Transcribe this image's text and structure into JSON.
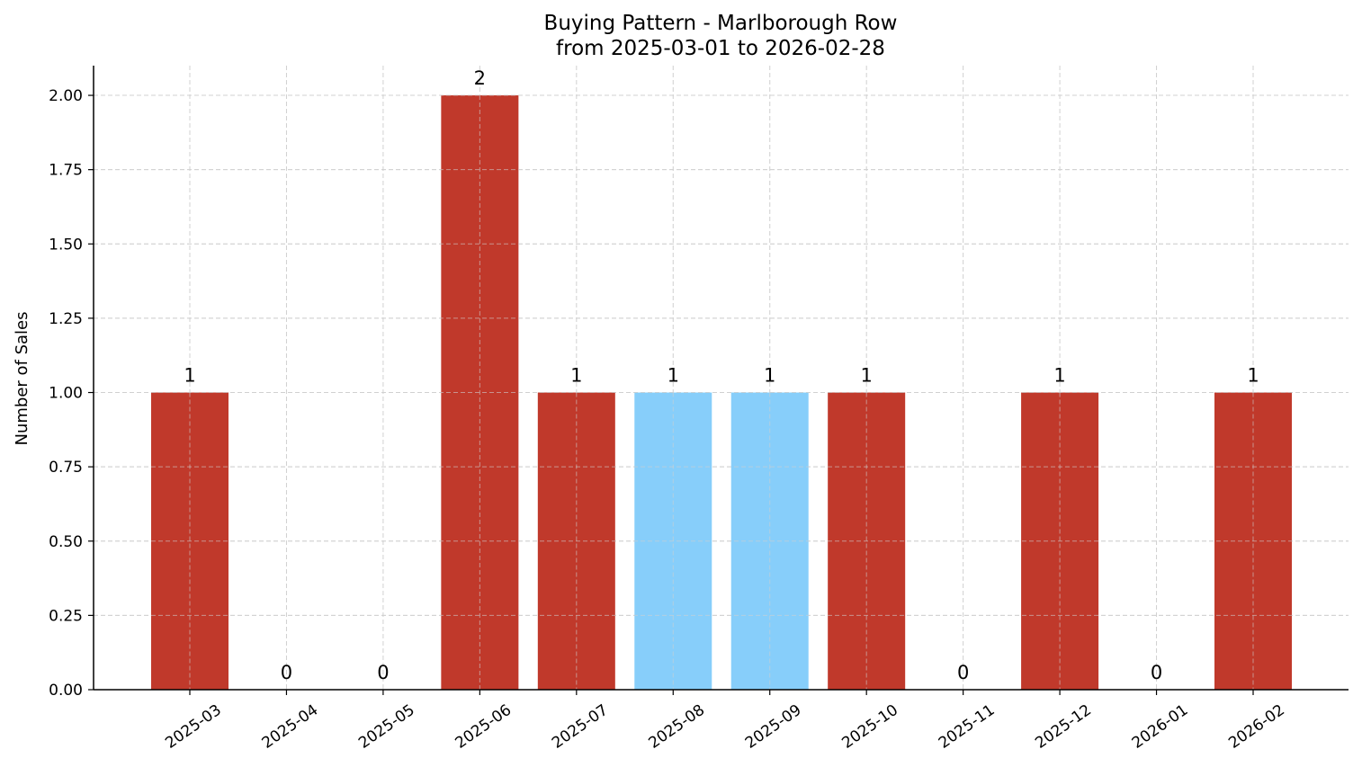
{
  "chart_data": {
    "type": "bar",
    "title": "Buying Pattern - Marlborough Row",
    "subtitle": "from 2025-03-01 to 2026-02-28",
    "xlabel": "",
    "ylabel": "Number of Sales",
    "categories": [
      "2025-03",
      "2025-04",
      "2025-05",
      "2025-06",
      "2025-07",
      "2025-08",
      "2025-09",
      "2025-10",
      "2025-11",
      "2025-12",
      "2026-01",
      "2026-02"
    ],
    "values": [
      1,
      0,
      0,
      2,
      1,
      1,
      1,
      1,
      0,
      1,
      0,
      1
    ],
    "bar_colors": [
      "#c0392b",
      "#c0392b",
      "#c0392b",
      "#c0392b",
      "#c0392b",
      "#87cefa",
      "#87cefa",
      "#c0392b",
      "#c0392b",
      "#c0392b",
      "#c0392b",
      "#c0392b"
    ],
    "ylim": [
      0,
      2.1
    ],
    "yticks": [
      "0.00",
      "0.25",
      "0.50",
      "0.75",
      "1.00",
      "1.25",
      "1.50",
      "1.75",
      "2.00"
    ],
    "grid": true,
    "show_value_labels": true
  }
}
